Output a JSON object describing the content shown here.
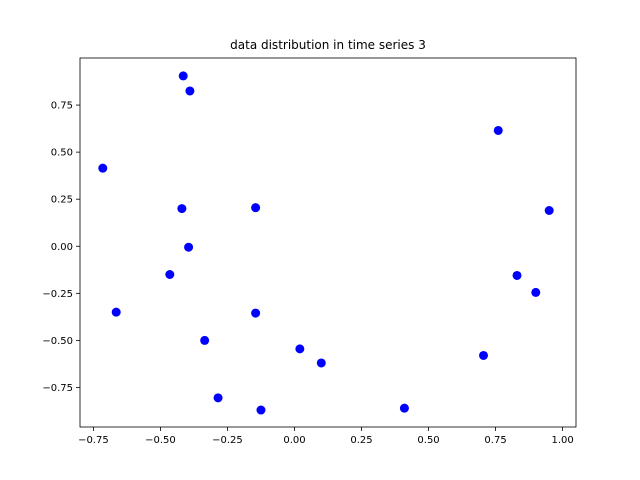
{
  "chart_data": {
    "type": "scatter",
    "title": "data distribution in time series 3",
    "xlabel": "",
    "ylabel": "",
    "xlim": [
      -0.8,
      1.05
    ],
    "ylim": [
      -0.96,
      1.0
    ],
    "grid": false,
    "marker_color": "#0000ff",
    "x_ticks": [
      -0.75,
      -0.5,
      -0.25,
      0.0,
      0.25,
      0.5,
      0.75,
      1.0
    ],
    "x_tick_labels": [
      "−0.75",
      "−0.50",
      "−0.25",
      "0.00",
      "0.25",
      "0.50",
      "0.75",
      "1.00"
    ],
    "y_ticks": [
      -0.75,
      -0.5,
      -0.25,
      0.0,
      0.25,
      0.5,
      0.75
    ],
    "y_tick_labels": [
      "−0.75",
      "−0.50",
      "−0.25",
      "0.00",
      "0.25",
      "0.50",
      "0.75"
    ],
    "points": [
      {
        "x": -0.415,
        "y": 0.905
      },
      {
        "x": -0.39,
        "y": 0.825
      },
      {
        "x": -0.715,
        "y": 0.415
      },
      {
        "x": -0.42,
        "y": 0.2
      },
      {
        "x": -0.145,
        "y": 0.205
      },
      {
        "x": -0.395,
        "y": -0.005
      },
      {
        "x": -0.465,
        "y": -0.15
      },
      {
        "x": -0.665,
        "y": -0.35
      },
      {
        "x": -0.335,
        "y": -0.5
      },
      {
        "x": -0.145,
        "y": -0.355
      },
      {
        "x": -0.285,
        "y": -0.805
      },
      {
        "x": -0.125,
        "y": -0.87
      },
      {
        "x": 0.02,
        "y": -0.545
      },
      {
        "x": 0.1,
        "y": -0.62
      },
      {
        "x": 0.41,
        "y": -0.86
      },
      {
        "x": 0.705,
        "y": -0.58
      },
      {
        "x": 0.76,
        "y": 0.615
      },
      {
        "x": 0.83,
        "y": -0.155
      },
      {
        "x": 0.9,
        "y": -0.245
      },
      {
        "x": 0.95,
        "y": 0.19
      }
    ]
  }
}
